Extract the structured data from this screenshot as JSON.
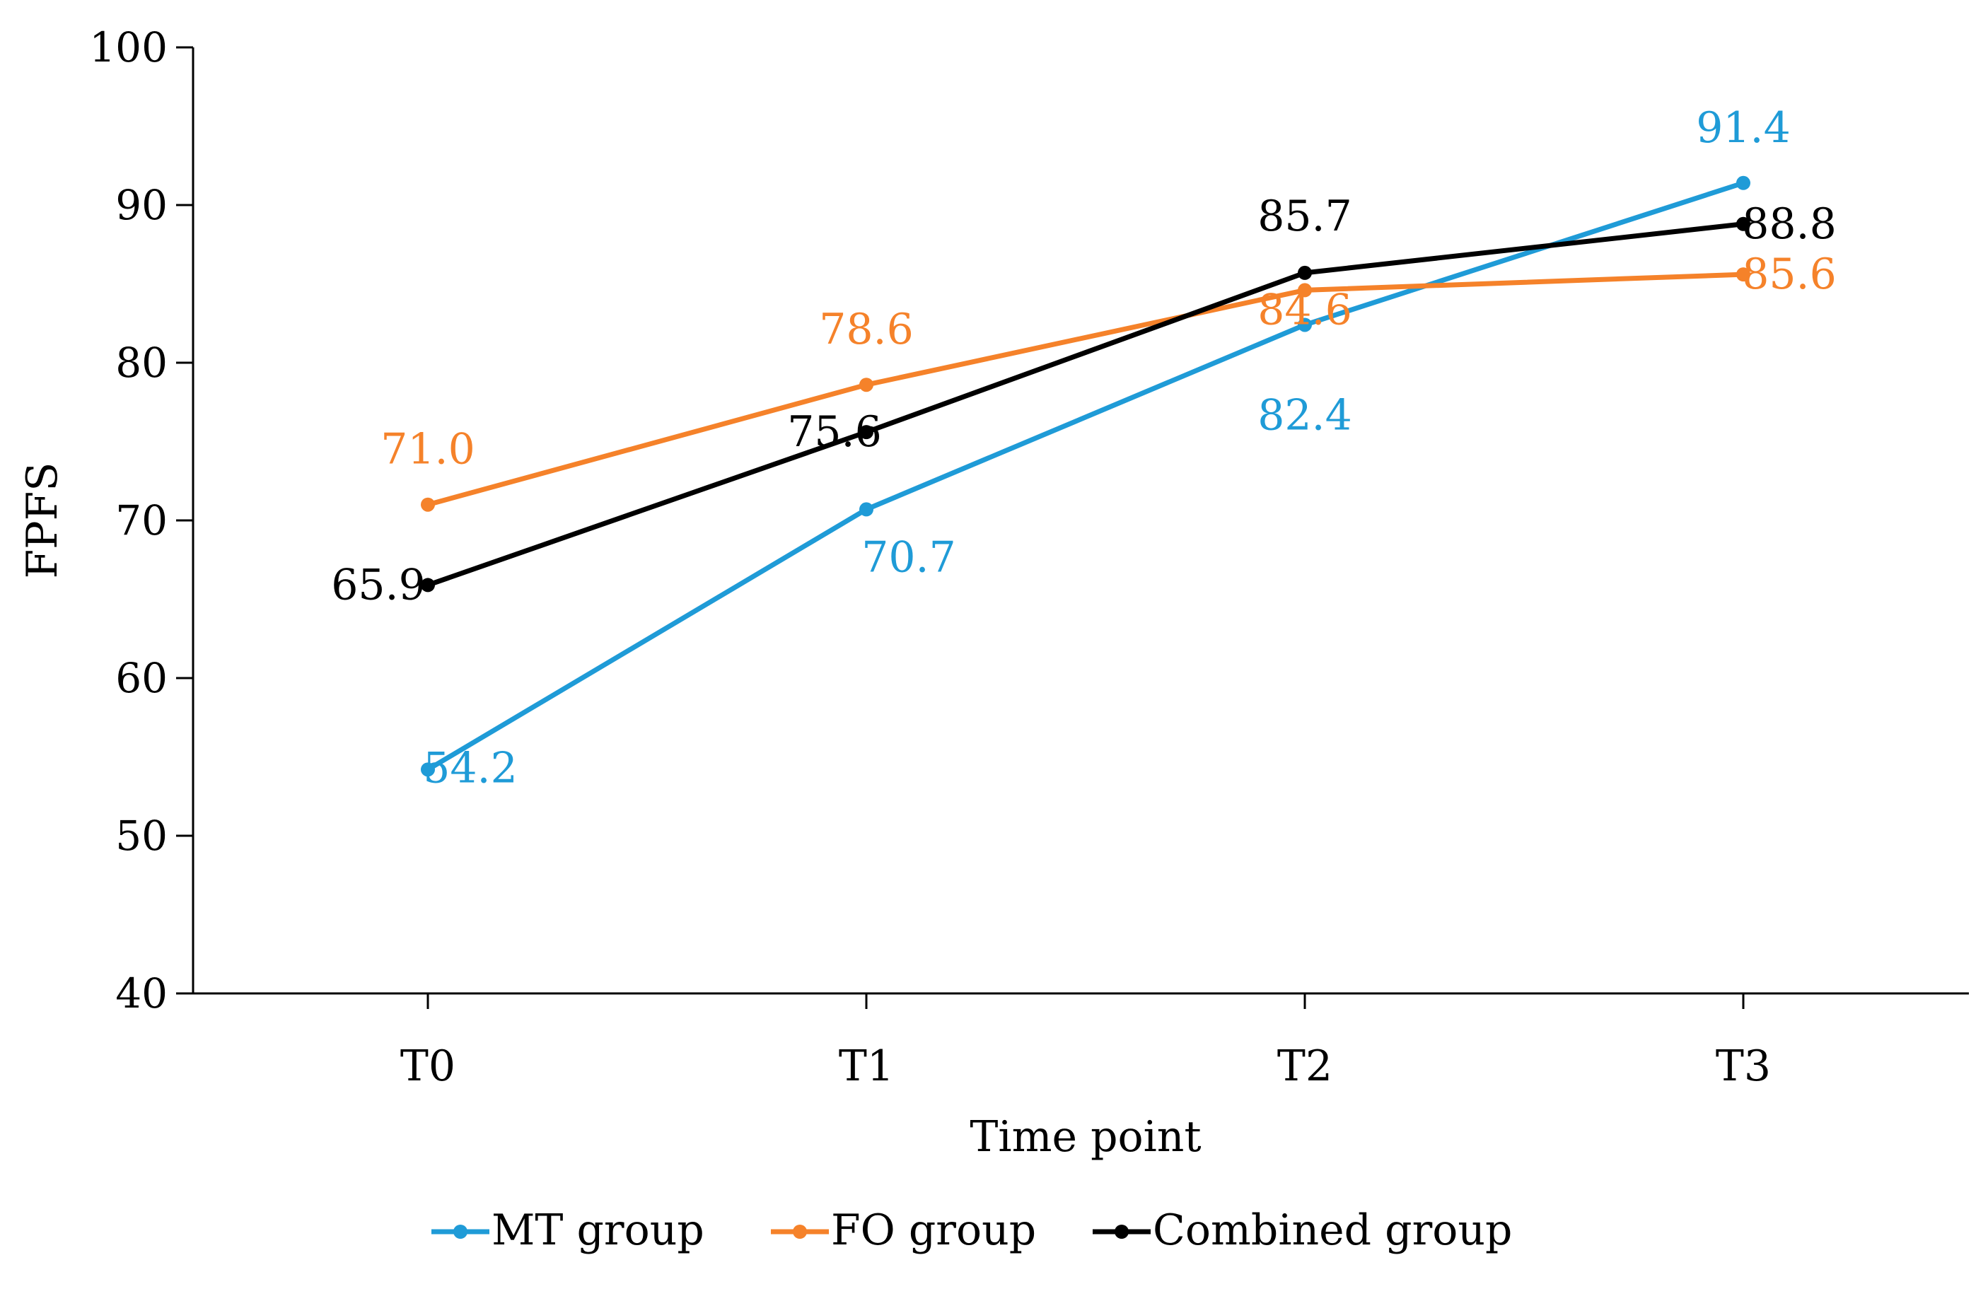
{
  "chart_data": {
    "type": "line",
    "title": "",
    "xlabel": "Time point",
    "ylabel": "FPFS",
    "categories": [
      "T0",
      "T1",
      "T2",
      "T3"
    ],
    "ylim": [
      40,
      100
    ],
    "yticks": [
      40,
      50,
      60,
      70,
      80,
      90,
      100
    ],
    "ytick_labels": [
      "40",
      "50",
      "60",
      "70",
      "80",
      "90",
      "100"
    ],
    "grid": false,
    "legend_position": "bottom",
    "series": [
      {
        "name": "MT group",
        "color": "#1f9bd7",
        "values": [
          54.2,
          70.7,
          82.4,
          91.4
        ],
        "labels": [
          "54.2",
          "70.7",
          "82.4",
          "91.4"
        ]
      },
      {
        "name": "FO group",
        "color": "#f5822a",
        "values": [
          71.0,
          78.6,
          84.6,
          85.6
        ],
        "labels": [
          "71.0",
          "78.6",
          "84.6",
          "85.6"
        ]
      },
      {
        "name": "Combined group",
        "color": "#000000",
        "values": [
          65.9,
          75.6,
          85.7,
          88.8
        ],
        "labels": [
          "65.9",
          "75.6",
          "85.7",
          "88.8"
        ]
      }
    ]
  }
}
